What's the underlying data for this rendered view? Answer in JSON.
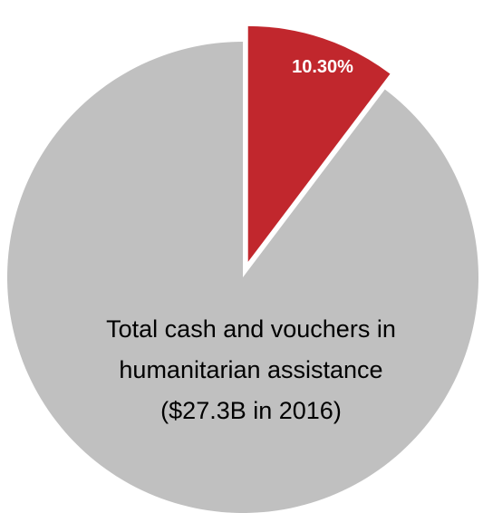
{
  "chart_data": {
    "type": "pie",
    "title": "",
    "slices": [
      {
        "label": "10.30%",
        "value": 10.3,
        "color": "#c1272d",
        "exploded": true
      },
      {
        "label": "",
        "value": 89.7,
        "color": "#c0c0c0",
        "exploded": false
      }
    ],
    "annotation": [
      "Total cash and vouchers in",
      "humanitarian assistance",
      "($27.3B in 2016)"
    ],
    "legend": "none",
    "grid": false
  }
}
